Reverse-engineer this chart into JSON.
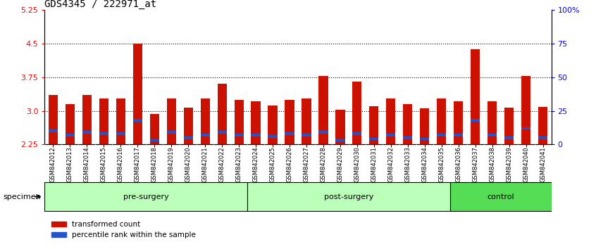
{
  "title": "GDS4345 / 222971_at",
  "categories": [
    "GSM842012",
    "GSM842013",
    "GSM842014",
    "GSM842015",
    "GSM842016",
    "GSM842017",
    "GSM842018",
    "GSM842019",
    "GSM842020",
    "GSM842021",
    "GSM842022",
    "GSM842023",
    "GSM842024",
    "GSM842025",
    "GSM842026",
    "GSM842027",
    "GSM842028",
    "GSM842029",
    "GSM842030",
    "GSM842031",
    "GSM842032",
    "GSM842033",
    "GSM842034",
    "GSM842035",
    "GSM842036",
    "GSM842037",
    "GSM842038",
    "GSM842039",
    "GSM842040",
    "GSM842041"
  ],
  "red_values": [
    3.35,
    3.15,
    3.35,
    3.28,
    3.27,
    4.5,
    2.93,
    3.27,
    3.07,
    3.27,
    3.6,
    3.25,
    3.22,
    3.12,
    3.25,
    3.27,
    3.78,
    3.02,
    3.65,
    3.1,
    3.28,
    3.15,
    3.05,
    3.28,
    3.22,
    4.37,
    3.22,
    3.07,
    3.78,
    3.08
  ],
  "blue_percentile": [
    10,
    7,
    9,
    8,
    8,
    18,
    3,
    9,
    5,
    7,
    9,
    7,
    7,
    6,
    8,
    7,
    9,
    3,
    8,
    4,
    7,
    5,
    4,
    7,
    7,
    18,
    7,
    5,
    12,
    5
  ],
  "ymin": 2.25,
  "ymax": 5.25,
  "yticks_left": [
    2.25,
    3.0,
    3.75,
    4.5,
    5.25
  ],
  "yticks_right_vals": [
    0,
    25,
    50,
    75,
    100
  ],
  "yticks_right_labels": [
    "0",
    "25",
    "50",
    "75",
    "100%"
  ],
  "gridlines": [
    3.0,
    3.75,
    4.5
  ],
  "bar_color": "#cc1100",
  "blue_color": "#2255cc",
  "bg_color": "#ffffff",
  "plot_bg": "#ffffff",
  "tick_bg_color": "#cccccc",
  "groups": [
    {
      "label": "pre-surgery",
      "start": 0,
      "end": 12
    },
    {
      "label": "post-surgery",
      "start": 12,
      "end": 24
    },
    {
      "label": "control",
      "start": 24,
      "end": 30
    }
  ],
  "group_colors": [
    "#bbffbb",
    "#bbffbb",
    "#55dd55"
  ],
  "specimen_label": "specimen",
  "legend_items": [
    {
      "label": "transformed count",
      "color": "#cc1100"
    },
    {
      "label": "percentile rank within the sample",
      "color": "#2255cc"
    }
  ],
  "title_fontsize": 10,
  "tick_fontsize": 6,
  "label_fontsize": 6,
  "bar_width": 0.55
}
